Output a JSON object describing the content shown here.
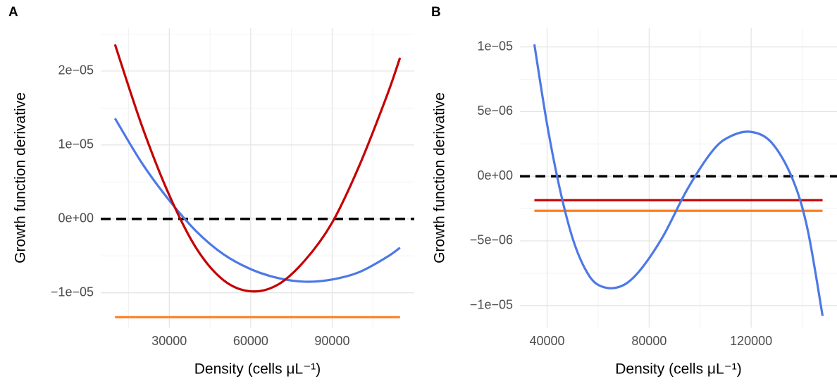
{
  "chart_data": [
    {
      "type": "line",
      "panel_label": "A",
      "x_label": "Density (cells μL⁻¹)",
      "y_label": "Growth function derivative",
      "xlim": [
        4750,
        120250
      ],
      "ylim": [
        -1.47e-05,
        2.58e-05
      ],
      "xticks": [
        30000,
        60000,
        90000
      ],
      "minor_xticks": [
        15000,
        45000,
        75000,
        105000
      ],
      "yticks": [
        {
          "value": -1e-05,
          "label": "−1e−05"
        },
        {
          "value": 0,
          "label": "0e+00"
        },
        {
          "value": 1e-05,
          "label": "1e−05"
        },
        {
          "value": 2e-05,
          "label": "2e−05"
        }
      ],
      "minor_yticks": [
        -5e-06,
        5e-06,
        1.5e-05,
        2.5e-05
      ],
      "grid": true,
      "hline": {
        "value": 0,
        "color": "#000000"
      },
      "series": [
        {
          "color": "#4d79e6",
          "x": [
            10000,
            20000,
            30000,
            40000,
            50000,
            60000,
            70000,
            80000,
            90000,
            100000,
            110000,
            115000
          ],
          "values": [
            1.36e-05,
            7.5e-06,
            2.5e-06,
            -1.7e-06,
            -4.8e-06,
            -6.8e-06,
            -8e-06,
            -8.5e-06,
            -8.2e-06,
            -7.2e-06,
            -5.2e-06,
            -3.9e-06
          ]
        },
        {
          "color": "#c40000",
          "x": [
            10000,
            20000,
            30000,
            40000,
            50000,
            60000,
            70000,
            80000,
            90000,
            100000,
            110000,
            115000
          ],
          "values": [
            2.36e-05,
            1.25e-05,
            3.2e-06,
            -4e-06,
            -8.3e-06,
            -9.8e-06,
            -8.9e-06,
            -5.6e-06,
            -5e-07,
            7.2e-06,
            1.65e-05,
            2.18e-05
          ]
        },
        {
          "color": "#ff7f1e",
          "x": [
            10000,
            115000
          ],
          "values": [
            -1.33e-05,
            -1.33e-05
          ]
        }
      ]
    },
    {
      "type": "line",
      "panel_label": "B",
      "x_label": "Density (cells μL⁻¹)",
      "y_label": "Growth function derivative",
      "xlim": [
        29350,
        153650
      ],
      "ylim": [
        -1.17e-05,
        1.145e-05
      ],
      "xticks": [
        40000,
        80000,
        120000
      ],
      "minor_xticks": [
        60000,
        100000,
        140000
      ],
      "yticks": [
        {
          "value": -1e-05,
          "label": "−1e−05"
        },
        {
          "value": -5e-06,
          "label": "−5e−06"
        },
        {
          "value": 0,
          "label": "0e+00"
        },
        {
          "value": 5e-06,
          "label": "5e−06"
        },
        {
          "value": 1e-05,
          "label": "1e−05"
        }
      ],
      "minor_yticks": [
        -7.5e-06,
        -2.5e-06,
        2.5e-06,
        7.5e-06
      ],
      "grid": true,
      "hline": {
        "value": 0,
        "color": "#000000"
      },
      "series": [
        {
          "color": "#c40000",
          "x": [
            35000,
            148000
          ],
          "values": [
            -1.85e-06,
            -1.85e-06
          ]
        },
        {
          "color": "#ff7f1e",
          "x": [
            35000,
            148000
          ],
          "values": [
            -2.67e-06,
            -2.67e-06
          ]
        },
        {
          "color": "#4d79e6",
          "x": [
            35000,
            40000,
            45000,
            50000,
            55000,
            60000,
            67500,
            75000,
            85000,
            95000,
            105000,
            112000,
            120000,
            128000,
            136000,
            142000,
            148000
          ],
          "values": [
            1.02e-05,
            4e-06,
            -1e-06,
            -4.8e-06,
            -7.2e-06,
            -8.4e-06,
            -8.6e-06,
            -7.6e-06,
            -4.8e-06,
            -1e-06,
            2e-06,
            3.1e-06,
            3.43e-06,
            2.6e-06,
            -1e-07,
            -4e-06,
            -1.08e-05
          ]
        }
      ]
    }
  ]
}
